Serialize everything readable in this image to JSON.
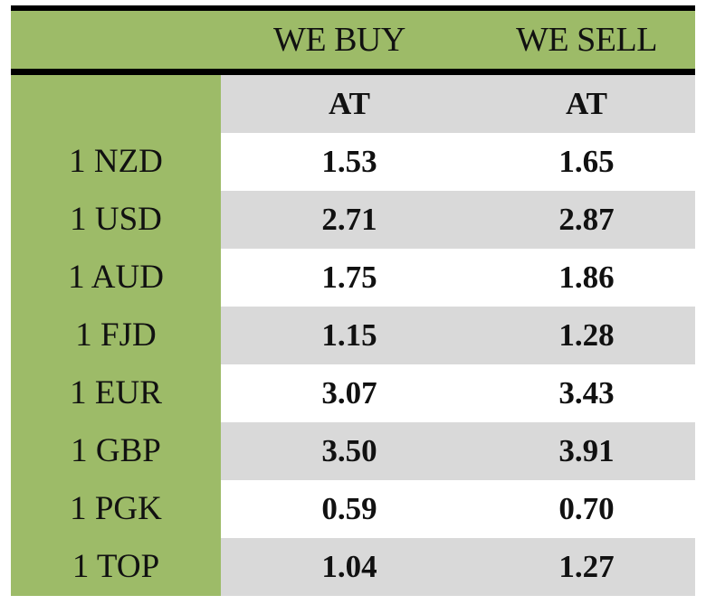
{
  "header": {
    "buy": "WE BUY",
    "sell": "WE SELL"
  },
  "subheader": {
    "buy": "AT",
    "sell": "AT"
  },
  "rows": [
    {
      "currency": "1 NZD",
      "buy": "1.53",
      "sell": "1.65"
    },
    {
      "currency": "1 USD",
      "buy": "2.71",
      "sell": "2.87"
    },
    {
      "currency": "1 AUD",
      "buy": "1.75",
      "sell": "1.86"
    },
    {
      "currency": "1 FJD",
      "buy": "1.15",
      "sell": "1.28"
    },
    {
      "currency": "1 EUR",
      "buy": "3.07",
      "sell": "3.43"
    },
    {
      "currency": "1 GBP",
      "buy": "3.50",
      "sell": "3.91"
    },
    {
      "currency": "1 PGK",
      "buy": "0.59",
      "sell": "0.70"
    },
    {
      "currency": "1 TOP",
      "buy": "1.04",
      "sell": "1.27"
    }
  ],
  "colors": {
    "label_green": "#9dbb68",
    "row_gray": "#d9d9d9",
    "rule": "#000000"
  }
}
